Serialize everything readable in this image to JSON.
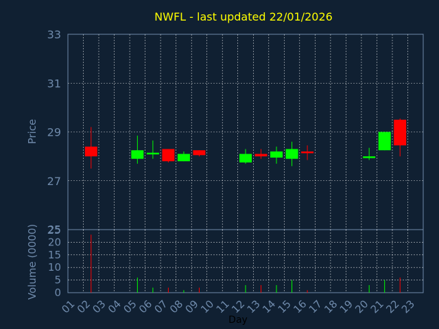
{
  "chart_data": {
    "type": "candlestick",
    "title": "NWFL - last updated 22/01/2026",
    "xlabel": "Day",
    "price_panel": {
      "ylabel": "Price",
      "ylim": [
        25,
        33
      ],
      "yticks": [
        25,
        27,
        29,
        31,
        33
      ],
      "grid": true
    },
    "volume_panel": {
      "ylabel": "Volume (0000)",
      "ylim": [
        0,
        25
      ],
      "yticks": [
        0,
        5,
        10,
        15,
        20,
        25
      ],
      "grid": true
    },
    "x_ticks": [
      "01",
      "02",
      "03",
      "04",
      "05",
      "06",
      "07",
      "08",
      "09",
      "10",
      "11",
      "12",
      "13",
      "14",
      "15",
      "16",
      "17",
      "18",
      "19",
      "20",
      "21",
      "22",
      "23"
    ],
    "colors": {
      "up": "#00ff00",
      "down": "#ff0000",
      "grid": "#ffffff",
      "axis_text": "#6f8aab",
      "title": "#ffff00",
      "background": "#102032"
    },
    "candles": [
      {
        "day": 2,
        "open": 28.4,
        "high": 29.2,
        "low": 27.5,
        "close": 28.0,
        "volume": 23
      },
      {
        "day": 5,
        "open": 27.9,
        "high": 28.85,
        "low": 27.7,
        "close": 28.25,
        "volume": 6
      },
      {
        "day": 6,
        "open": 28.1,
        "high": 28.65,
        "low": 27.9,
        "close": 28.15,
        "volume": 2
      },
      {
        "day": 7,
        "open": 28.3,
        "high": 28.3,
        "low": 27.75,
        "close": 27.8,
        "volume": 2
      },
      {
        "day": 8,
        "open": 27.8,
        "high": 28.2,
        "low": 27.8,
        "close": 28.1,
        "volume": 1
      },
      {
        "day": 9,
        "open": 28.25,
        "high": 28.25,
        "low": 28.0,
        "close": 28.05,
        "volume": 2
      },
      {
        "day": 12,
        "open": 27.75,
        "high": 28.3,
        "low": 27.7,
        "close": 28.1,
        "volume": 3
      },
      {
        "day": 13,
        "open": 28.1,
        "high": 28.3,
        "low": 27.9,
        "close": 28.0,
        "volume": 3
      },
      {
        "day": 14,
        "open": 27.95,
        "high": 28.4,
        "low": 27.7,
        "close": 28.2,
        "volume": 3
      },
      {
        "day": 15,
        "open": 27.9,
        "high": 28.6,
        "low": 27.6,
        "close": 28.3,
        "volume": 5
      },
      {
        "day": 16,
        "open": 28.2,
        "high": 28.45,
        "low": 27.85,
        "close": 28.15,
        "volume": 1
      },
      {
        "day": 20,
        "open": 27.95,
        "high": 28.35,
        "low": 27.85,
        "close": 28.0,
        "volume": 3
      },
      {
        "day": 21,
        "open": 28.25,
        "high": 29.0,
        "low": 28.25,
        "close": 29.0,
        "volume": 5
      },
      {
        "day": 22,
        "open": 29.5,
        "high": 29.55,
        "low": 28.0,
        "close": 28.45,
        "volume": 6
      }
    ]
  }
}
